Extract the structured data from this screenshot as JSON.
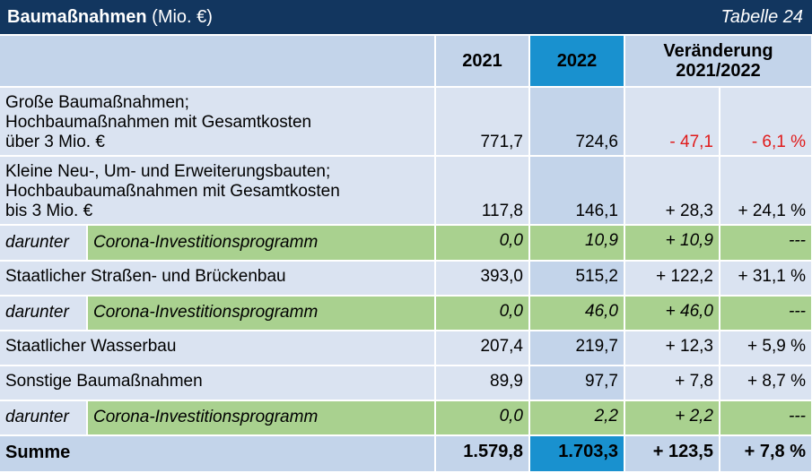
{
  "header": {
    "title_bold": "Baumaßnahmen",
    "title_unit": "(Mio. €)",
    "table_tag": "Tabelle 24"
  },
  "columns": {
    "y2021": "2021",
    "y2022": "2022",
    "change_line1": "Veränderung",
    "change_line2": "2021/2022"
  },
  "rows": [
    {
      "label_lines": [
        "Große Baumaßnahmen;",
        "Hochbaumaßnahmen mit Gesamtkosten",
        "über 3 Mio. €"
      ],
      "v2021": "771,7",
      "v2022": "724,6",
      "abs": "- 47,1",
      "pct": "- 6,1 %"
    },
    {
      "label_lines": [
        "Kleine Neu-, Um- und Erweiterungsbauten;",
        "Hochbaubaumaßnahmen mit Gesamtkosten",
        "bis 3 Mio. €"
      ],
      "v2021": "117,8",
      "v2022": "146,1",
      "abs": "+ 28,3",
      "pct": "+ 24,1 %"
    },
    {
      "prefix": "darunter",
      "label": "Corona-Investitionsprogramm",
      "v2021": "0,0",
      "v2022": "10,9",
      "abs": "+ 10,9",
      "pct": "---"
    },
    {
      "label": "Staatlicher Straßen- und Brückenbau",
      "v2021": "393,0",
      "v2022": "515,2",
      "abs": "+ 122,2",
      "pct": "+ 31,1 %"
    },
    {
      "prefix": "darunter",
      "label": "Corona-Investitionsprogramm",
      "v2021": "0,0",
      "v2022": "46,0",
      "abs": "+ 46,0",
      "pct": "---"
    },
    {
      "label": "Staatlicher Wasserbau",
      "v2021": "207,4",
      "v2022": "219,7",
      "abs": "+ 12,3",
      "pct": "+ 5,9 %"
    },
    {
      "label": "Sonstige Baumaßnahmen",
      "v2021": "89,9",
      "v2022": "97,7",
      "abs": "+ 7,8",
      "pct": "+ 8,7 %"
    },
    {
      "prefix": "darunter",
      "label": "Corona-Investitionsprogramm",
      "v2021": "0,0",
      "v2022": "2,2",
      "abs": "+ 2,2",
      "pct": "---"
    }
  ],
  "sum": {
    "label": "Summe",
    "v2021": "1.579,8",
    "v2022": "1.703,3",
    "abs": "+ 123,5",
    "pct": "+ 7,8 %"
  },
  "colors": {
    "header_bg": "#12365f",
    "col_header_bg": "#c3d4ea",
    "highlight_2022": "#1991cf",
    "row_bg": "#dae3f1",
    "corona_row_bg": "#a9d18f",
    "negative_text": "#e01b1b"
  }
}
